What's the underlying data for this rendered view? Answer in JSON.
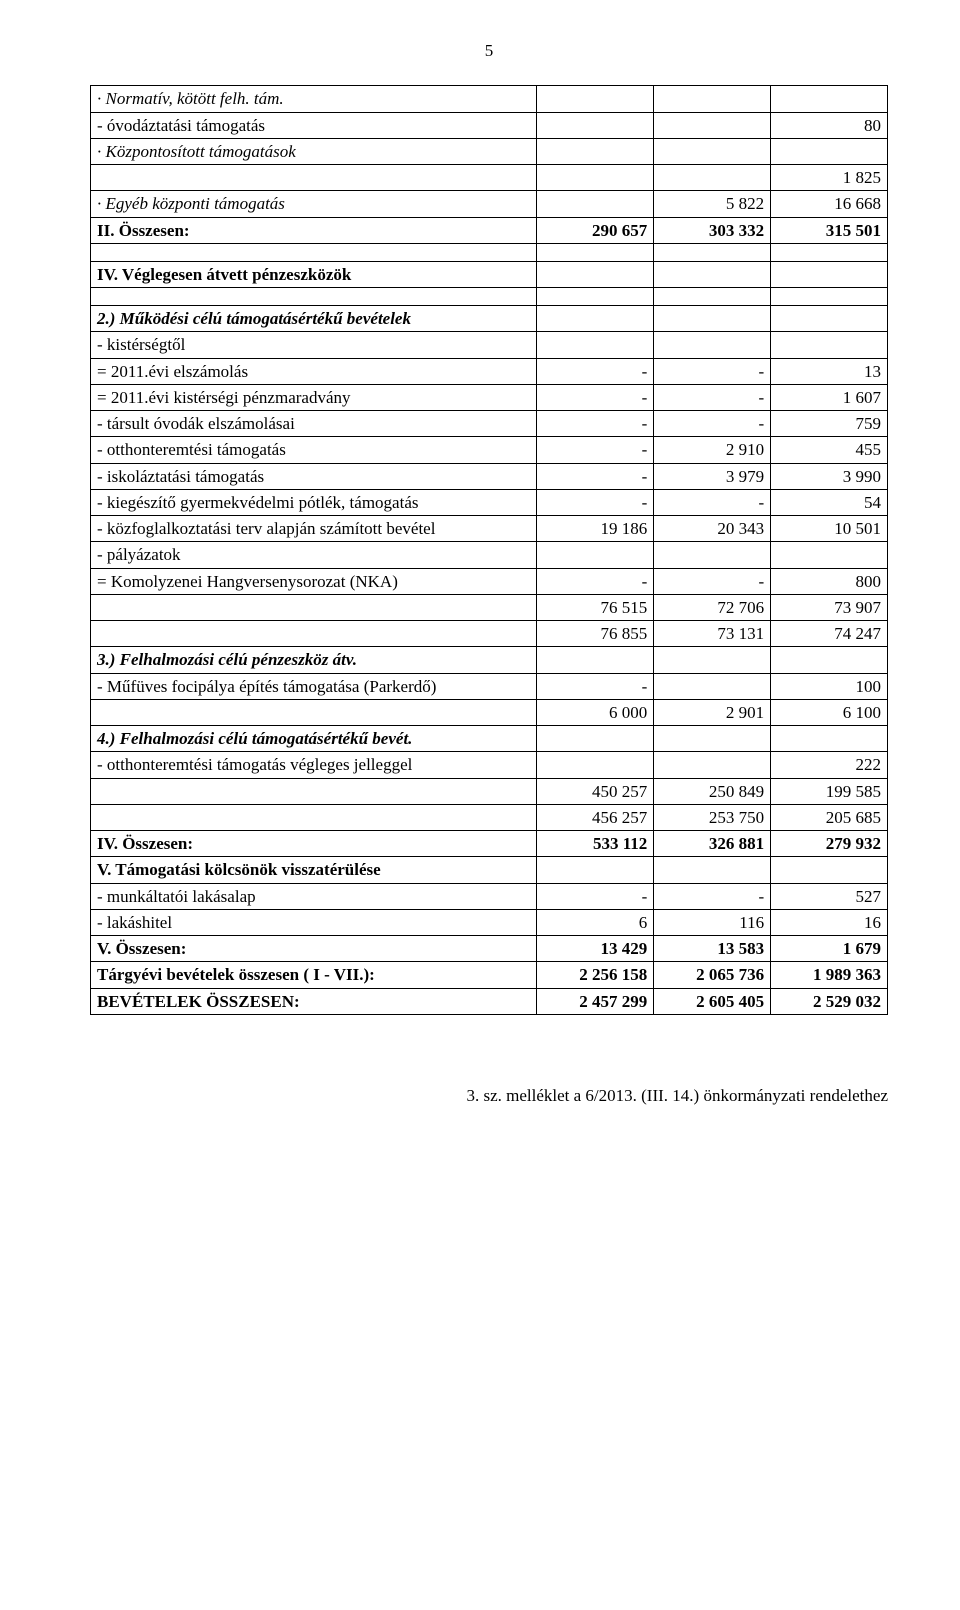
{
  "page_number": "5",
  "rows": [
    {
      "label": "· Normatív, kötött felh. tám.",
      "cls": "italic",
      "c1": "",
      "c2": "",
      "c3": ""
    },
    {
      "label": "   - óvodáztatási támogatás",
      "cls": "",
      "c1": "",
      "c2": "",
      "c3": "80"
    },
    {
      "label": "· Központosított támogatások",
      "cls": "italic",
      "c1": "",
      "c2": "",
      "c3": ""
    },
    {
      "label": "",
      "cls": "",
      "c1": "",
      "c2": "",
      "c3": "1 825"
    },
    {
      "label": "· Egyéb központi támogatás",
      "cls": "italic",
      "c1": "",
      "c2": "5 822",
      "c3": "16 668"
    },
    {
      "label": "II. Összesen:",
      "cls": "bold",
      "c1": "290 657",
      "c2": "303 332",
      "c3": "315 501"
    },
    {
      "spacer": true
    },
    {
      "label": "IV. Véglegesen átvett pénzeszközök",
      "cls": "bold",
      "c1": "",
      "c2": "",
      "c3": ""
    },
    {
      "spacer": true
    },
    {
      "label": "2.) Működési célú támogatásértékű bevételek",
      "cls": "bolditalic",
      "c1": "",
      "c2": "",
      "c3": ""
    },
    {
      "label": "- kistérségtől",
      "cls": "",
      "c1": "",
      "c2": "",
      "c3": ""
    },
    {
      "label": "   = 2011.évi elszámolás",
      "cls": "",
      "c1": "-",
      "c2": "-",
      "c3": "13"
    },
    {
      "label": "   = 2011.évi kistérségi pénzmaradvány",
      "cls": "",
      "c1": "-",
      "c2": "-",
      "c3": "1 607"
    },
    {
      "label": "- társult óvodák elszámolásai",
      "cls": "",
      "c1": "-",
      "c2": "-",
      "c3": "759"
    },
    {
      "label": "- otthonteremtési támogatás",
      "cls": "",
      "c1": "-",
      "c2": "2 910",
      "c3": "455"
    },
    {
      "label": "- iskoláztatási támogatás",
      "cls": "",
      "c1": "-",
      "c2": "3 979",
      "c3": "3 990"
    },
    {
      "label": "- kiegészítő gyermekvédelmi pótlék, támogatás",
      "cls": "",
      "c1": "-",
      "c2": "-",
      "c3": "54"
    },
    {
      "label": "- közfoglalkoztatási terv alapján számított bevétel",
      "cls": "",
      "c1": "19 186",
      "c2": "20 343",
      "c3": "10 501"
    },
    {
      "label": "- pályázatok",
      "cls": "",
      "c1": "",
      "c2": "",
      "c3": ""
    },
    {
      "label": "   = Komolyzenei Hangversenysorozat (NKA)",
      "cls": "",
      "c1": "-",
      "c2": "-",
      "c3": "800"
    },
    {
      "label": "",
      "cls": "",
      "c1": "76 515",
      "c2": "72 706",
      "c3": "73 907"
    },
    {
      "label": "",
      "cls": "",
      "c1": "76 855",
      "c2": "73 131",
      "c3": "74 247"
    },
    {
      "label": "3.) Felhalmozási célú pénzeszköz átv.",
      "cls": "bolditalic",
      "c1": "",
      "c2": "",
      "c3": ""
    },
    {
      "label": "- Műfüves focipálya építés támogatása (Parkerdő)",
      "cls": "",
      "c1": "-",
      "c2": "",
      "c3": "100"
    },
    {
      "label": "",
      "cls": "",
      "c1": "6 000",
      "c2": "2 901",
      "c3": "6 100"
    },
    {
      "label": "4.) Felhalmozási célú támogatásértékű bevét.",
      "cls": "bolditalic",
      "c1": "",
      "c2": "",
      "c3": ""
    },
    {
      "label": "- otthonteremtési támogatás végleges jelleggel",
      "cls": "",
      "c1": "",
      "c2": "",
      "c3": "222"
    },
    {
      "label": "",
      "cls": "",
      "c1": "450 257",
      "c2": "250 849",
      "c3": "199 585"
    },
    {
      "label": "",
      "cls": "",
      "c1": "456 257",
      "c2": "253 750",
      "c3": "205 685"
    },
    {
      "label": "IV. Összesen:",
      "cls": "bold",
      "c1": "533 112",
      "c2": "326 881",
      "c3": "279 932"
    },
    {
      "label": "V. Támogatási kölcsönök visszatérülése",
      "cls": "bold",
      "c1": "",
      "c2": "",
      "c3": ""
    },
    {
      "label": "- munkáltatói lakásalap",
      "cls": "",
      "c1": "-",
      "c2": "-",
      "c3": "527"
    },
    {
      "label": "- lakáshitel",
      "cls": "",
      "c1": "6",
      "c2": "116",
      "c3": "16"
    },
    {
      "label": "V. Összesen:",
      "cls": "bold",
      "c1": "13 429",
      "c2": "13 583",
      "c3": "1 679"
    },
    {
      "label": "Tárgyévi bevételek összesen ( I - VII.):",
      "cls": "bold",
      "c1": "2 256 158",
      "c2": "2 065 736",
      "c3": "1 989 363"
    },
    {
      "label": "BEVÉTELEK ÖSSZESEN:",
      "cls": "bold",
      "c1": "2 457 299",
      "c2": "2 605 405",
      "c3": "2 529 032"
    }
  ],
  "footnote": "3. sz. melléklet a 6/2013. (III. 14.) önkormányzati rendelethez"
}
